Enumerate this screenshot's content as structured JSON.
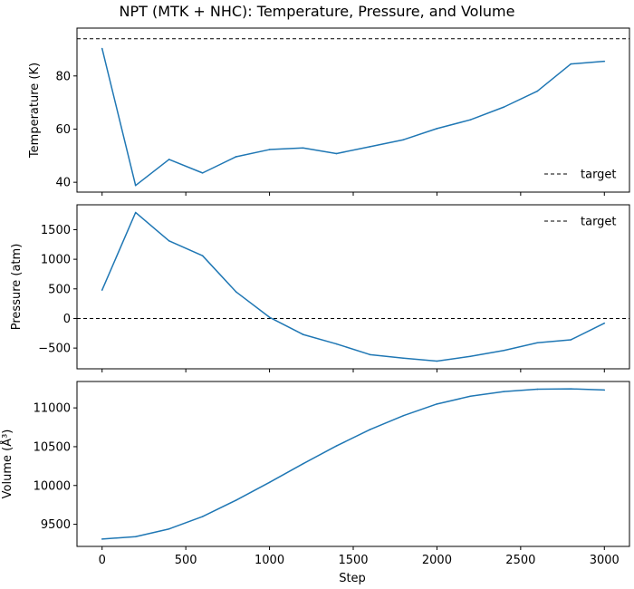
{
  "figure": {
    "title": "NPT (MTK + NHC): Temperature, Pressure, and Volume",
    "xlabel": "Step"
  },
  "colors": {
    "series": "#1f77b4",
    "target": "#000000",
    "axes": "#000000",
    "background": "#ffffff"
  },
  "chart_data": [
    {
      "type": "line",
      "ylabel": "Temperature (K)",
      "x": [
        0,
        200,
        400,
        600,
        800,
        1000,
        1200,
        1400,
        1600,
        1800,
        2000,
        2200,
        2400,
        2600,
        2800,
        3000
      ],
      "series": [
        {
          "values": [
            90.3,
            38.8,
            48.6,
            43.5,
            49.6,
            52.3,
            52.9,
            50.8,
            53.4,
            56.0,
            60.2,
            63.5,
            68.3,
            74.3,
            84.5,
            85.5
          ]
        }
      ],
      "target": 94,
      "target_label": "target",
      "legend_position": "lower-right",
      "xlim": [
        -150,
        3150
      ],
      "ylim": [
        36.3,
        98
      ],
      "yticks": [
        40,
        60,
        80
      ],
      "xticks": [
        0,
        500,
        1000,
        1500,
        2000,
        2500,
        3000
      ],
      "show_xtick_labels": false
    },
    {
      "type": "line",
      "ylabel": "Pressure (atm)",
      "x": [
        0,
        200,
        400,
        600,
        800,
        1000,
        1200,
        1400,
        1600,
        1800,
        2000,
        2200,
        2400,
        2600,
        2800,
        3000
      ],
      "series": [
        {
          "values": [
            480,
            1790,
            1310,
            1060,
            450,
            20,
            -270,
            -430,
            -610,
            -670,
            -720,
            -640,
            -540,
            -410,
            -360,
            -80
          ]
        }
      ],
      "target": 0,
      "target_label": "target",
      "legend_position": "upper-right",
      "xlim": [
        -150,
        3150
      ],
      "ylim": [
        -850,
        1920
      ],
      "yticks": [
        -500,
        0,
        500,
        1000,
        1500
      ],
      "xticks": [
        0,
        500,
        1000,
        1500,
        2000,
        2500,
        3000
      ],
      "show_xtick_labels": false
    },
    {
      "type": "line",
      "ylabel": "Volume (Å³)",
      "x": [
        0,
        200,
        400,
        600,
        800,
        1000,
        1200,
        1400,
        1600,
        1800,
        2000,
        2200,
        2400,
        2600,
        2800,
        3000
      ],
      "series": [
        {
          "values": [
            9310,
            9340,
            9440,
            9600,
            9810,
            10040,
            10280,
            10510,
            10720,
            10900,
            11050,
            11150,
            11210,
            11240,
            11245,
            11230
          ]
        }
      ],
      "xlim": [
        -150,
        3150
      ],
      "ylim": [
        9215,
        11340
      ],
      "yticks": [
        9500,
        10000,
        10500,
        11000
      ],
      "xticks": [
        0,
        500,
        1000,
        1500,
        2000,
        2500,
        3000
      ],
      "show_xtick_labels": true
    }
  ]
}
